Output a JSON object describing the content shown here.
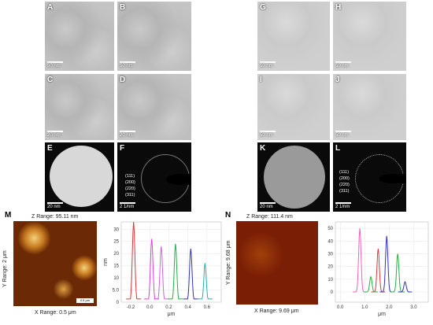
{
  "panels": {
    "A": {
      "label": "A",
      "scale": "50 nm"
    },
    "B": {
      "label": "B",
      "scale": "50 nm"
    },
    "C": {
      "label": "C",
      "scale": "20 nm"
    },
    "D": {
      "label": "D",
      "scale": "20 nm"
    },
    "E": {
      "label": "E",
      "scale": "20 nm"
    },
    "F": {
      "label": "F",
      "scale": "2 1/nm"
    },
    "G": {
      "label": "G",
      "scale": "50 nm"
    },
    "H": {
      "label": "H",
      "scale": "50 nm"
    },
    "I": {
      "label": "I",
      "scale": "50 nm"
    },
    "J": {
      "label": "J",
      "scale": "50 nm"
    },
    "K": {
      "label": "K",
      "scale": "20 nm"
    },
    "L": {
      "label": "L",
      "scale": "2 1/nm"
    }
  },
  "saed_planes": [
    "(111)",
    "(200)",
    "(220)",
    "(311)"
  ],
  "afm_M": {
    "label": "M",
    "z_range": "Z Range: 95.11 nm",
    "y_range": "Y Range: 2 μm",
    "x_range": "X Range: 0.5 μm",
    "scale_text": "0.5 μm",
    "colors": {
      "bg": "#6b2a05",
      "high": "#f4d27a"
    }
  },
  "afm_N": {
    "label": "N",
    "z_range": "Z Range: 111.4 nm",
    "y_range": "Y Range: 9.68 μm",
    "x_range": "X Range: 9.69 μm",
    "colors": {
      "bg": "#7a1e06",
      "high": "#e8c060"
    }
  },
  "chart_data": [
    {
      "type": "line",
      "xlabel": "μm",
      "ylabel": "nm",
      "xlim": [
        -0.3,
        0.75
      ],
      "ylim": [
        0,
        33
      ],
      "x_ticks": [
        "-0.2",
        "0.0",
        "0.2",
        "0.4",
        "0.6"
      ],
      "x_tick_values": [
        -0.2,
        0.0,
        0.2,
        0.4,
        0.6
      ],
      "y_ticks": [
        "0",
        "5.0",
        "10",
        "15",
        "20",
        "25",
        "30"
      ],
      "y_tick_values": [
        0,
        5,
        10,
        15,
        20,
        25,
        30
      ],
      "series": [
        {
          "color": "#e0343a",
          "peak_x": -0.17,
          "peak_y": 33
        },
        {
          "color": "#e040e0",
          "peak_x": 0.02,
          "peak_y": 26
        },
        {
          "color": "#d060e0",
          "peak_x": 0.12,
          "peak_y": 23
        },
        {
          "color": "#20b040",
          "peak_x": 0.27,
          "peak_y": 24
        },
        {
          "color": "#3030c0",
          "peak_x": 0.43,
          "peak_y": 22
        },
        {
          "color": "#20b0b0",
          "peak_x": 0.58,
          "peak_y": 16
        }
      ]
    },
    {
      "type": "line",
      "xlabel": "μm",
      "xlim": [
        -0.2,
        3.6
      ],
      "ylim": [
        -8,
        55
      ],
      "x_ticks": [
        "0.0",
        "1.0",
        "2.0",
        "3.0"
      ],
      "x_tick_values": [
        0,
        1,
        2,
        3
      ],
      "y_ticks": [
        "0",
        "10",
        "20",
        "30",
        "40",
        "50"
      ],
      "y_tick_values": [
        0,
        10,
        20,
        30,
        40,
        50
      ],
      "series": [
        {
          "color": "#f060c0",
          "peak_x": 0.8,
          "peak_y": 50
        },
        {
          "color": "#e0343a",
          "peak_x": 1.55,
          "peak_y": 34
        },
        {
          "color": "#3030c0",
          "peak_x": 1.9,
          "peak_y": 44
        },
        {
          "color": "#20b040",
          "peak_x": 2.35,
          "peak_y": 30
        },
        {
          "color": "#20b040",
          "peak_x": 1.25,
          "peak_y": 12
        },
        {
          "color": "#3030c0",
          "peak_x": 2.65,
          "peak_y": 8
        }
      ]
    }
  ]
}
